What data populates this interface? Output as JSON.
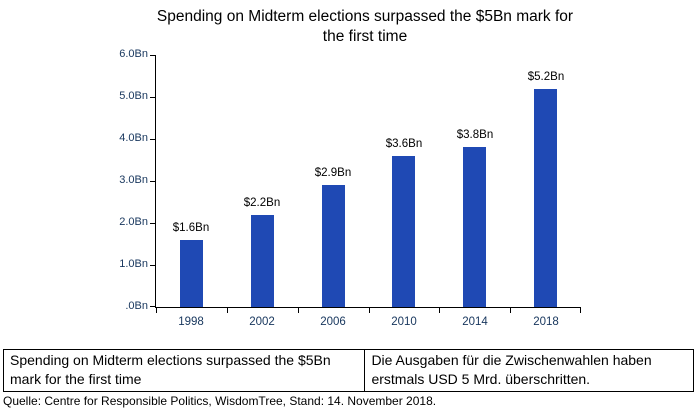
{
  "chart_data": {
    "type": "bar",
    "title": "Spending on Midterm elections surpassed the $5Bn mark for the first time",
    "categories": [
      "1998",
      "2002",
      "2006",
      "2010",
      "2014",
      "2018"
    ],
    "values": [
      1.6,
      2.2,
      2.9,
      3.6,
      3.8,
      5.2
    ],
    "data_labels": [
      "$1.6Bn",
      "$2.2Bn",
      "$2.9Bn",
      "$3.6Bn",
      "$3.8Bn",
      "$5.2Bn"
    ],
    "xlabel": "",
    "ylabel": "",
    "ylim": [
      0,
      6.0
    ],
    "y_tick_labels": [
      "6.0Bn",
      "5.0Bn",
      "4.0Bn",
      "3.0Bn",
      "2.0Bn",
      "1.0Bn",
      ".0Bn"
    ],
    "grid": false,
    "legend": false,
    "bar_color": "#1F49B4",
    "axis_tick_label_color": "#17365D",
    "data_label_color": "#000000"
  },
  "footer": {
    "caption_en": "Spending on Midterm elections surpassed the $5Bn mark for the first time",
    "caption_de": "Die Ausgaben für die Zwischenwahlen haben erstmals USD 5 Mrd. überschritten.",
    "source": "Quelle: Centre for Responsible Politics, WisdomTree, Stand: 14. November 2018."
  }
}
